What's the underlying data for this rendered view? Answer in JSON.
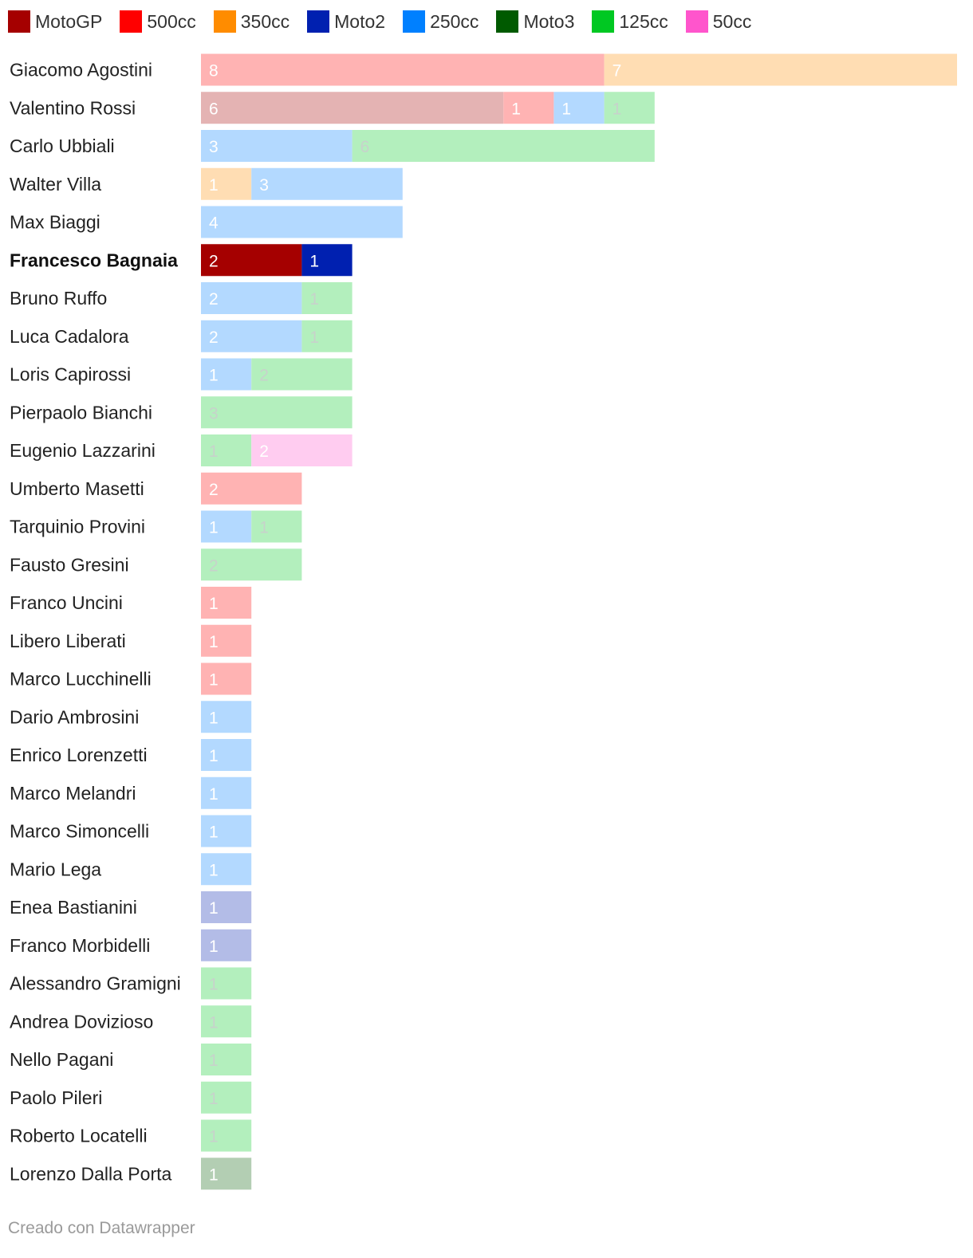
{
  "legend": [
    {
      "label": "MotoGP",
      "color": "#a50000"
    },
    {
      "label": "500cc",
      "color": "#ff0000"
    },
    {
      "label": "350cc",
      "color": "#ff8c00"
    },
    {
      "label": "Moto2",
      "color": "#0020b0"
    },
    {
      "label": "250cc",
      "color": "#0080ff"
    },
    {
      "label": "Moto3",
      "color": "#005a00"
    },
    {
      "label": "125cc",
      "color": "#00c822"
    },
    {
      "label": "50cc",
      "color": "#ff55cc"
    }
  ],
  "chart_data": {
    "type": "bar",
    "orientation": "horizontal",
    "stacked": true,
    "highlighted_rider": "Francesco Bagnaia",
    "xlim": [
      0,
      15
    ],
    "series_names": [
      "MotoGP",
      "500cc",
      "350cc",
      "Moto2",
      "250cc",
      "Moto3",
      "125cc",
      "50cc"
    ],
    "rows": [
      {
        "name": "Giacomo Agostini",
        "segments": [
          {
            "series": "500cc",
            "value": 8
          },
          {
            "series": "350cc",
            "value": 7
          }
        ]
      },
      {
        "name": "Valentino Rossi",
        "segments": [
          {
            "series": "MotoGP",
            "value": 6
          },
          {
            "series": "500cc",
            "value": 1
          },
          {
            "series": "250cc",
            "value": 1
          },
          {
            "series": "125cc",
            "value": 1
          }
        ]
      },
      {
        "name": "Carlo Ubbiali",
        "segments": [
          {
            "series": "250cc",
            "value": 3
          },
          {
            "series": "125cc",
            "value": 6
          }
        ]
      },
      {
        "name": "Walter Villa",
        "segments": [
          {
            "series": "350cc",
            "value": 1
          },
          {
            "series": "250cc",
            "value": 3
          }
        ]
      },
      {
        "name": "Max Biaggi",
        "segments": [
          {
            "series": "250cc",
            "value": 4
          }
        ]
      },
      {
        "name": "Francesco Bagnaia",
        "segments": [
          {
            "series": "MotoGP",
            "value": 2
          },
          {
            "series": "Moto2",
            "value": 1
          }
        ]
      },
      {
        "name": "Bruno Ruffo",
        "segments": [
          {
            "series": "250cc",
            "value": 2
          },
          {
            "series": "125cc",
            "value": 1
          }
        ]
      },
      {
        "name": "Luca Cadalora",
        "segments": [
          {
            "series": "250cc",
            "value": 2
          },
          {
            "series": "125cc",
            "value": 1
          }
        ]
      },
      {
        "name": "Loris Capirossi",
        "segments": [
          {
            "series": "250cc",
            "value": 1
          },
          {
            "series": "125cc",
            "value": 2
          }
        ]
      },
      {
        "name": "Pierpaolo Bianchi",
        "segments": [
          {
            "series": "125cc",
            "value": 3
          }
        ]
      },
      {
        "name": "Eugenio Lazzarini",
        "segments": [
          {
            "series": "125cc",
            "value": 1
          },
          {
            "series": "50cc",
            "value": 2
          }
        ]
      },
      {
        "name": "Umberto Masetti",
        "segments": [
          {
            "series": "500cc",
            "value": 2
          }
        ]
      },
      {
        "name": "Tarquinio Provini",
        "segments": [
          {
            "series": "250cc",
            "value": 1
          },
          {
            "series": "125cc",
            "value": 1
          }
        ]
      },
      {
        "name": "Fausto Gresini",
        "segments": [
          {
            "series": "125cc",
            "value": 2
          }
        ]
      },
      {
        "name": "Franco Uncini",
        "segments": [
          {
            "series": "500cc",
            "value": 1
          }
        ]
      },
      {
        "name": "Libero Liberati",
        "segments": [
          {
            "series": "500cc",
            "value": 1
          }
        ]
      },
      {
        "name": "Marco Lucchinelli",
        "segments": [
          {
            "series": "500cc",
            "value": 1
          }
        ]
      },
      {
        "name": "Dario Ambrosini",
        "segments": [
          {
            "series": "250cc",
            "value": 1
          }
        ]
      },
      {
        "name": "Enrico Lorenzetti",
        "segments": [
          {
            "series": "250cc",
            "value": 1
          }
        ]
      },
      {
        "name": "Marco Melandri",
        "segments": [
          {
            "series": "250cc",
            "value": 1
          }
        ]
      },
      {
        "name": "Marco Simoncelli",
        "segments": [
          {
            "series": "250cc",
            "value": 1
          }
        ]
      },
      {
        "name": "Mario Lega",
        "segments": [
          {
            "series": "250cc",
            "value": 1
          }
        ]
      },
      {
        "name": "Enea Bastianini",
        "segments": [
          {
            "series": "Moto2",
            "value": 1
          }
        ]
      },
      {
        "name": "Franco Morbidelli",
        "segments": [
          {
            "series": "Moto2",
            "value": 1
          }
        ]
      },
      {
        "name": "Alessandro Gramigni",
        "segments": [
          {
            "series": "125cc",
            "value": 1
          }
        ]
      },
      {
        "name": "Andrea Dovizioso",
        "segments": [
          {
            "series": "125cc",
            "value": 1
          }
        ]
      },
      {
        "name": "Nello Pagani",
        "segments": [
          {
            "series": "125cc",
            "value": 1
          }
        ]
      },
      {
        "name": "Paolo Pileri",
        "segments": [
          {
            "series": "125cc",
            "value": 1
          }
        ]
      },
      {
        "name": "Roberto Locatelli",
        "segments": [
          {
            "series": "125cc",
            "value": 1
          }
        ]
      },
      {
        "name": "Lorenzo Dalla Porta",
        "segments": [
          {
            "series": "Moto3",
            "value": 1
          }
        ]
      }
    ]
  },
  "footer": {
    "credit": "Creado con Datawrapper"
  }
}
